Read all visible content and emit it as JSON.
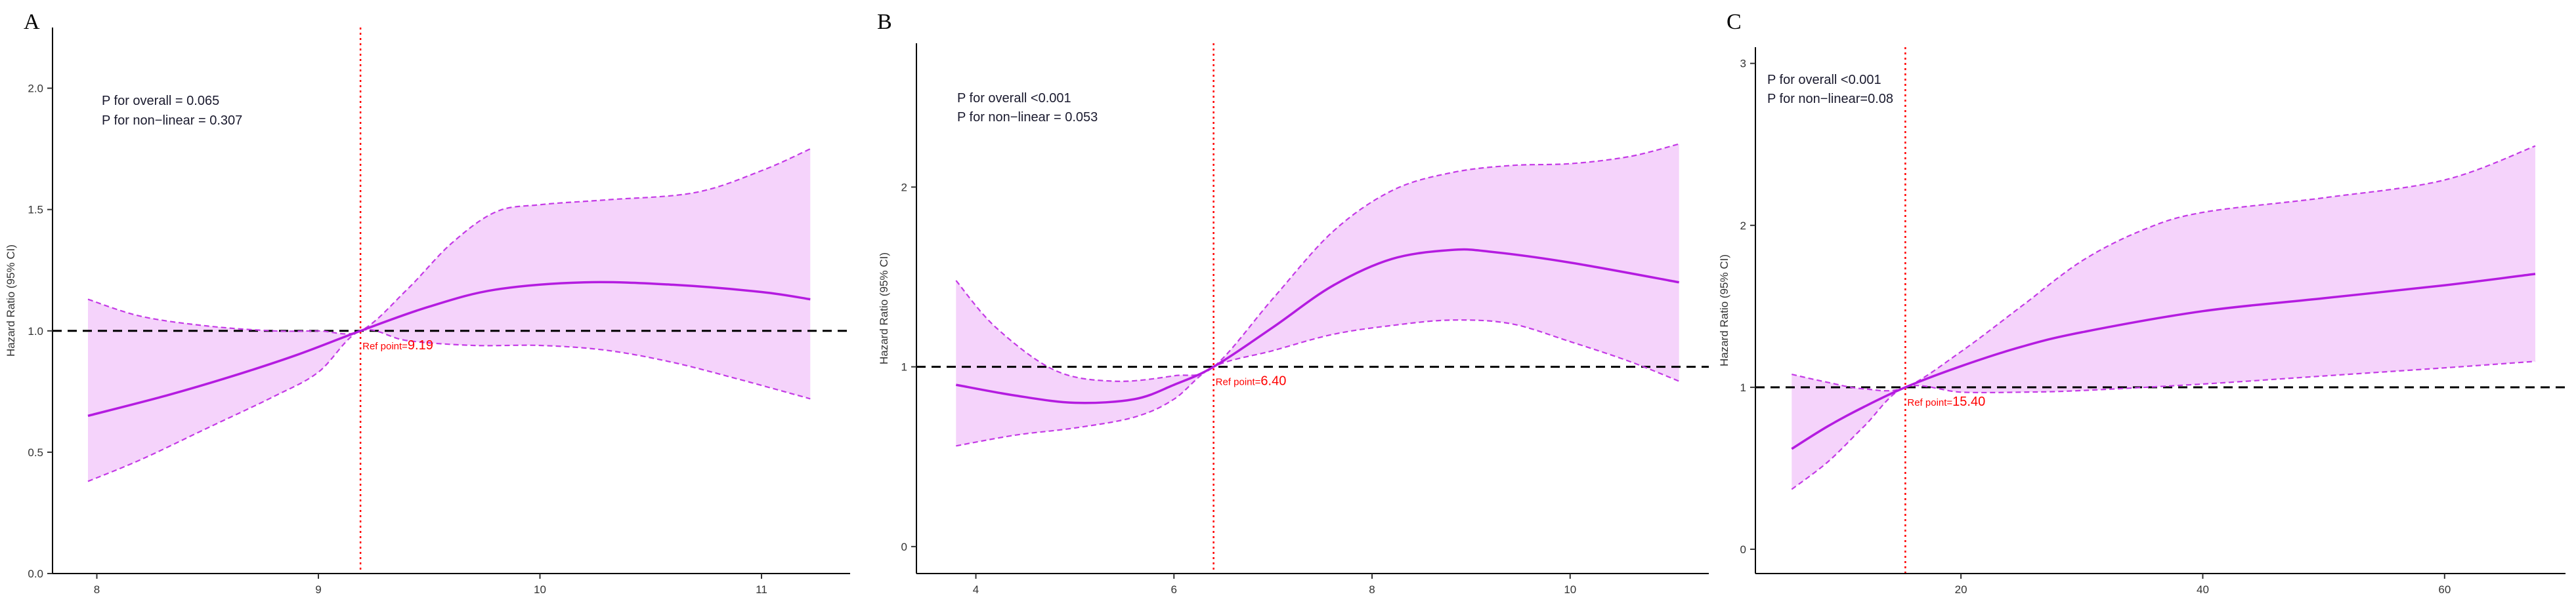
{
  "chart_data": [
    {
      "type": "line",
      "panel_label": "A",
      "ylabel": "Hazard Ratio (95% CI)",
      "xlim": [
        7.8,
        11.4
      ],
      "ylim": [
        0,
        2.25
      ],
      "x_ticks": [
        8,
        9,
        10,
        11
      ],
      "y_ticks": [
        0.0,
        0.5,
        1.0,
        1.5,
        2.0
      ],
      "y_tick_labels": [
        "0.0",
        "0.5",
        "1.0",
        "1.5",
        "2.0"
      ],
      "p_overall": "P for overall = 0.065",
      "p_nonlinear": "P for non−linear = 0.307",
      "ref_point_prefix": "Ref point=",
      "ref_point_value": "9.19",
      "ref_x": 9.19,
      "reference_hr": 1.0,
      "series": [
        {
          "role": "estimate",
          "x": [
            7.96,
            8.3,
            8.6,
            8.9,
            9.19,
            9.5,
            9.8,
            10.2,
            10.6,
            11.0,
            11.22
          ],
          "y": [
            0.65,
            0.73,
            0.81,
            0.9,
            1.0,
            1.1,
            1.17,
            1.2,
            1.19,
            1.16,
            1.13
          ]
        },
        {
          "role": "upper_ci",
          "x": [
            7.96,
            8.2,
            8.5,
            8.8,
            9.0,
            9.19,
            9.4,
            9.6,
            9.8,
            10.0,
            10.3,
            10.7,
            11.0,
            11.22
          ],
          "y": [
            1.13,
            1.06,
            1.02,
            1.0,
            1.0,
            1.0,
            1.17,
            1.36,
            1.49,
            1.52,
            1.54,
            1.57,
            1.66,
            1.75
          ]
        },
        {
          "role": "lower_ci",
          "x": [
            7.96,
            8.2,
            8.5,
            8.8,
            9.0,
            9.19,
            9.4,
            9.7,
            10.0,
            10.3,
            10.6,
            10.9,
            11.22
          ],
          "y": [
            0.38,
            0.47,
            0.6,
            0.73,
            0.83,
            1.0,
            0.96,
            0.94,
            0.94,
            0.92,
            0.87,
            0.8,
            0.72
          ]
        }
      ]
    },
    {
      "type": "line",
      "panel_label": "B",
      "ylabel": "Hazard Ratio (95% CI)",
      "xlim": [
        3.4,
        11.4
      ],
      "ylim": [
        -0.15,
        2.8
      ],
      "x_ticks": [
        4,
        6,
        8,
        10
      ],
      "y_ticks": [
        0,
        1,
        2
      ],
      "y_tick_labels": [
        "0",
        "1",
        "2"
      ],
      "p_overall": "P for overall  <0.001",
      "p_nonlinear": "P for non−linear = 0.053",
      "ref_point_prefix": "Ref point=",
      "ref_point_value": "6.40",
      "ref_x": 6.4,
      "reference_hr": 1.0,
      "series": [
        {
          "role": "estimate",
          "x": [
            3.8,
            4.4,
            5.0,
            5.6,
            6.0,
            6.4,
            7.0,
            7.6,
            8.2,
            8.8,
            9.2,
            10.0,
            11.1
          ],
          "y": [
            0.9,
            0.84,
            0.8,
            0.82,
            0.9,
            1.0,
            1.22,
            1.45,
            1.6,
            1.65,
            1.64,
            1.58,
            1.47
          ]
        },
        {
          "role": "upper_ci",
          "x": [
            3.8,
            4.2,
            4.8,
            5.4,
            6.0,
            6.4,
            7.0,
            7.6,
            8.2,
            8.8,
            9.4,
            10.0,
            10.6,
            11.1
          ],
          "y": [
            1.48,
            1.22,
            0.98,
            0.92,
            0.95,
            1.0,
            1.38,
            1.75,
            1.98,
            2.08,
            2.12,
            2.13,
            2.17,
            2.24
          ]
        },
        {
          "role": "lower_ci",
          "x": [
            3.8,
            4.4,
            5.0,
            5.6,
            6.0,
            6.4,
            7.0,
            7.6,
            8.2,
            8.8,
            9.4,
            10.0,
            10.6,
            11.1
          ],
          "y": [
            0.56,
            0.62,
            0.66,
            0.72,
            0.82,
            1.0,
            1.09,
            1.18,
            1.23,
            1.26,
            1.24,
            1.14,
            1.03,
            0.92
          ]
        }
      ]
    },
    {
      "type": "line",
      "panel_label": "C",
      "ylabel": "Hazard Ratio (95% CI)",
      "xlim": [
        3.0,
        70.0
      ],
      "ylim": [
        -0.15,
        3.1
      ],
      "x_ticks": [
        20,
        40,
        60
      ],
      "y_ticks": [
        0,
        1,
        2,
        3
      ],
      "y_tick_labels": [
        "0",
        "1",
        "2",
        "3"
      ],
      "p_overall": "P for overall <0.001",
      "p_nonlinear": "P for non−linear=0.08",
      "ref_point_prefix": "Ref point=",
      "ref_point_value": "15.40",
      "ref_x": 15.4,
      "reference_hr": 1.0,
      "series": [
        {
          "role": "estimate",
          "x": [
            6.0,
            9.0,
            12.0,
            15.4,
            20.0,
            25.0,
            30.0,
            40.0,
            50.0,
            60.0,
            67.5
          ],
          "y": [
            0.62,
            0.76,
            0.88,
            1.0,
            1.13,
            1.25,
            1.34,
            1.47,
            1.55,
            1.63,
            1.7
          ]
        },
        {
          "role": "upper_ci",
          "x": [
            6.0,
            9.0,
            12.0,
            15.4,
            20.0,
            25.0,
            30.0,
            35.0,
            40.0,
            50.0,
            60.0,
            67.5
          ],
          "y": [
            1.08,
            1.03,
            0.99,
            1.0,
            1.22,
            1.5,
            1.78,
            1.97,
            2.08,
            2.17,
            2.28,
            2.49
          ]
        },
        {
          "role": "lower_ci",
          "x": [
            6.0,
            9.0,
            12.0,
            15.4,
            20.0,
            25.0,
            30.0,
            40.0,
            50.0,
            60.0,
            67.5
          ],
          "y": [
            0.37,
            0.54,
            0.76,
            1.0,
            0.97,
            0.97,
            0.98,
            1.02,
            1.07,
            1.12,
            1.16
          ]
        }
      ]
    }
  ],
  "colors": {
    "curve": "#b41be0",
    "ci_line": "#c43ae6",
    "band": "#f5d3fb",
    "reference_line": "#000000",
    "ref_vline": "#ff0000",
    "ref_label": "#ff0000"
  }
}
